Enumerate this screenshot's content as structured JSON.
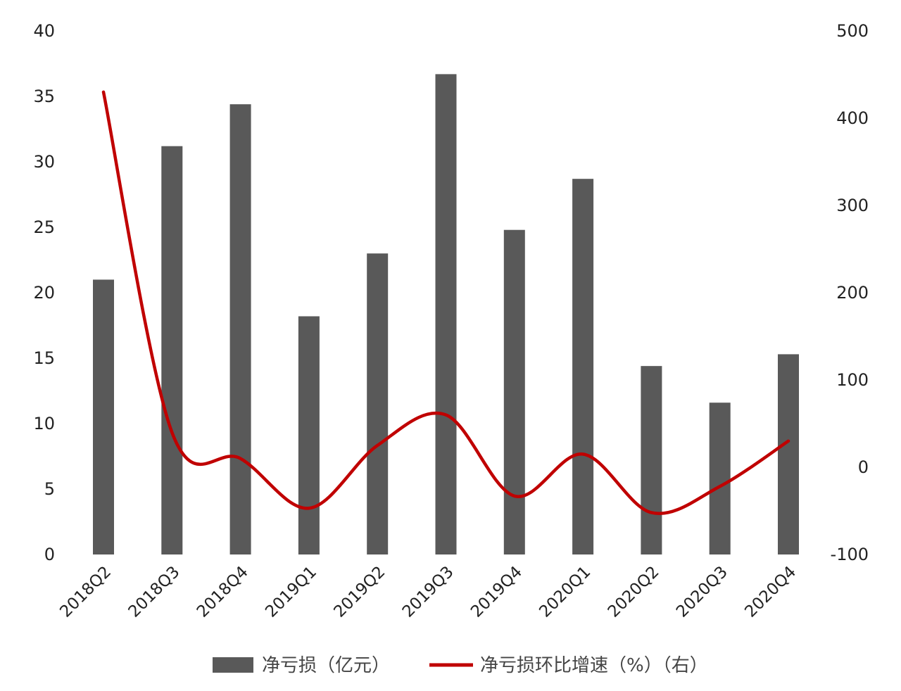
{
  "chart_data": {
    "type": "bar+line",
    "categories": [
      "2018Q2",
      "2018Q3",
      "2018Q4",
      "2019Q1",
      "2019Q2",
      "2019Q3",
      "2019Q4",
      "2020Q1",
      "2020Q2",
      "2020Q3",
      "2020Q4"
    ],
    "series": [
      {
        "name": "净亏损（亿元）",
        "type": "bar",
        "axis": "left",
        "color": "#595959",
        "values": [
          21.0,
          31.2,
          34.4,
          18.2,
          23.0,
          36.7,
          24.8,
          28.7,
          14.4,
          11.6,
          15.3
        ]
      },
      {
        "name": "净亏损环比增速（%）（右）",
        "type": "line",
        "axis": "right",
        "color": "#c00000",
        "values": [
          430,
          40,
          10,
          -47,
          25,
          60,
          -33,
          15,
          -52,
          -22,
          30
        ]
      }
    ],
    "left_axis": {
      "min": 0,
      "max": 40,
      "ticks": [
        0,
        5,
        10,
        15,
        20,
        25,
        30,
        35,
        40
      ]
    },
    "right_axis": {
      "min": -100,
      "max": 500,
      "ticks": [
        -100,
        0,
        100,
        200,
        300,
        400,
        500
      ]
    },
    "grid": false,
    "legend_position": "bottom"
  }
}
